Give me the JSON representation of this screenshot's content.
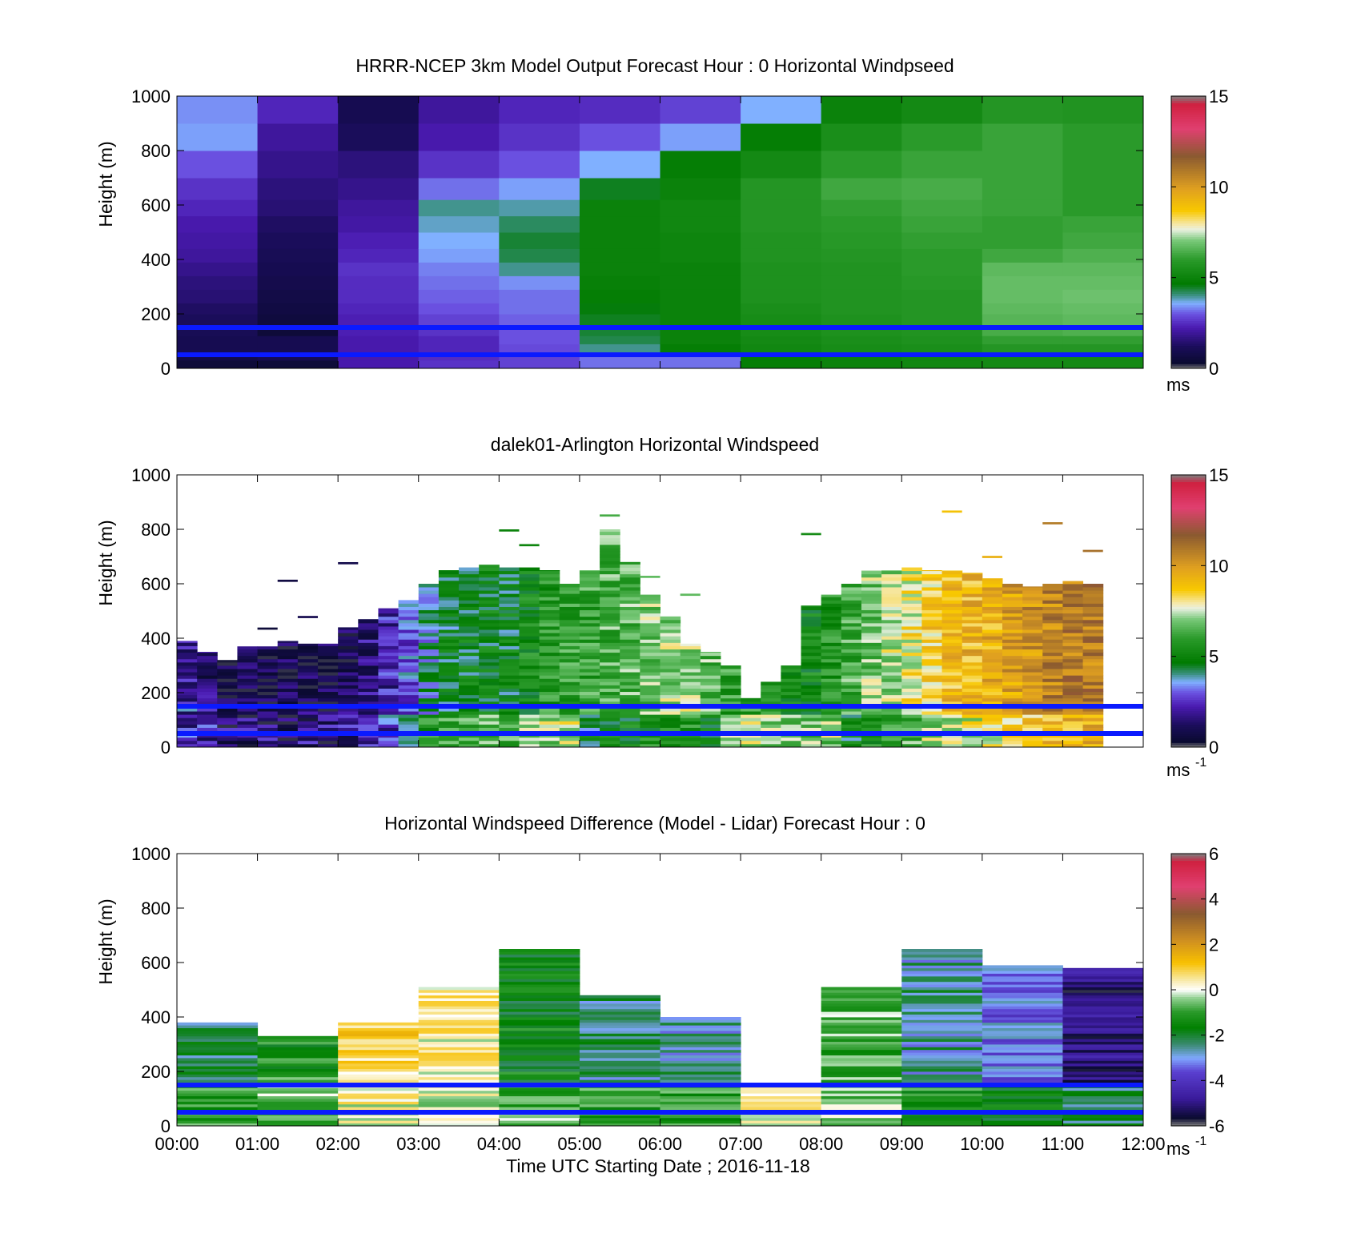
{
  "time_axis": {
    "ticks": [
      "00:00",
      "01:00",
      "02:00",
      "03:00",
      "04:00",
      "05:00",
      "06:00",
      "07:00",
      "08:00",
      "09:00",
      "10:00",
      "11:00",
      "12:00"
    ],
    "label": "Time UTC  Starting Date ; 2016-11-18"
  },
  "chart_data": [
    {
      "type": "heatmap",
      "title": "HRRR-NCEP 3km Model Output   Forecast Hour : 0 Horizontal Windpseed",
      "ylabel": "Height (m)",
      "ylim": [
        0,
        1000
      ],
      "yticks": [
        0,
        200,
        400,
        600,
        800,
        1000
      ],
      "xlim": [
        0,
        12
      ],
      "colorbar": {
        "range": [
          0,
          15
        ],
        "ticks": [
          0,
          5,
          10,
          15
        ],
        "label": "ms",
        "label_sup": ""
      },
      "reference_lines_m": [
        150,
        50
      ],
      "reference_line_color": "#0a1aff",
      "layers_m": [
        0,
        30,
        60,
        90,
        120,
        160,
        200,
        240,
        290,
        340,
        390,
        440,
        500,
        560,
        620,
        700,
        800,
        900,
        1000
      ],
      "columns": [
        {
          "t0": 0,
          "t1": 1,
          "values": [
            0.5,
            0.8,
            1.0,
            1.0,
            1.1,
            1.2,
            1.3,
            1.5,
            1.6,
            1.8,
            2.0,
            2.1,
            2.2,
            2.4,
            2.6,
            3.0,
            3.5,
            3.4,
            3.4
          ]
        },
        {
          "t0": 1,
          "t1": 2,
          "values": [
            0.5,
            1.0,
            1.0,
            1.0,
            0.5,
            0.6,
            0.7,
            0.8,
            0.9,
            1.0,
            1.1,
            1.2,
            1.3,
            1.5,
            1.6,
            1.8,
            2.0,
            2.4,
            2.4
          ]
        },
        {
          "t0": 2,
          "t1": 3,
          "values": [
            2.2,
            2.2,
            2.2,
            2.2,
            2.3,
            2.3,
            2.4,
            2.5,
            2.5,
            2.6,
            2.4,
            2.3,
            2.1,
            2.0,
            1.8,
            1.6,
            1.2,
            1.0,
            1.0
          ]
        },
        {
          "t0": 3,
          "t1": 4,
          "values": [
            2.6,
            2.5,
            2.4,
            2.4,
            2.6,
            2.8,
            3.0,
            3.1,
            3.2,
            3.3,
            3.5,
            3.6,
            3.8,
            4.0,
            3.2,
            2.6,
            2.2,
            2.0,
            2.0
          ]
        },
        {
          "t0": 4,
          "t1": 5,
          "values": [
            2.8,
            2.8,
            2.9,
            3.0,
            3.0,
            3.1,
            3.2,
            3.2,
            3.4,
            4.0,
            4.3,
            4.4,
            4.2,
            3.9,
            3.5,
            3.0,
            2.6,
            2.4,
            2.2
          ]
        },
        {
          "t0": 5,
          "t1": 6,
          "values": [
            3.2,
            3.2,
            4.0,
            4.3,
            4.4,
            4.5,
            4.6,
            4.8,
            4.9,
            5.0,
            5.0,
            5.0,
            5.0,
            5.0,
            4.5,
            3.6,
            3.0,
            2.5,
            2.5
          ]
        },
        {
          "t0": 6,
          "t1": 7,
          "values": [
            3.2,
            3.2,
            4.8,
            5.0,
            5.0,
            5.0,
            5.0,
            5.0,
            5.0,
            5.0,
            5.1,
            5.1,
            5.2,
            5.2,
            5.0,
            4.8,
            3.5,
            2.8,
            2.8
          ]
        },
        {
          "t0": 7,
          "t1": 8,
          "values": [
            4.8,
            4.8,
            5.2,
            5.3,
            5.4,
            5.4,
            5.5,
            5.6,
            5.6,
            5.6,
            5.7,
            5.7,
            5.8,
            5.8,
            5.8,
            5.3,
            4.8,
            3.6,
            3.6
          ]
        },
        {
          "t0": 8,
          "t1": 9,
          "values": [
            5.0,
            5.0,
            5.4,
            5.5,
            5.6,
            5.6,
            5.7,
            5.7,
            5.7,
            5.7,
            5.8,
            5.9,
            6.0,
            6.1,
            6.3,
            6.0,
            5.5,
            5.0,
            5.0
          ]
        },
        {
          "t0": 9,
          "t1": 10,
          "values": [
            5.2,
            5.2,
            5.5,
            5.6,
            5.7,
            5.8,
            5.8,
            5.8,
            5.9,
            6.0,
            6.0,
            6.1,
            6.2,
            6.3,
            6.4,
            6.2,
            6.0,
            5.3,
            5.3
          ]
        },
        {
          "t0": 10,
          "t1": 11,
          "values": [
            5.3,
            5.3,
            5.8,
            6.1,
            6.4,
            6.6,
            6.7,
            6.8,
            6.8,
            6.7,
            6.3,
            6.1,
            6.1,
            6.2,
            6.2,
            6.2,
            6.2,
            5.8,
            5.8
          ]
        },
        {
          "t0": 11,
          "t1": 12,
          "values": [
            5.3,
            5.3,
            5.8,
            6.1,
            6.5,
            6.7,
            6.8,
            6.9,
            6.8,
            6.7,
            6.5,
            6.3,
            6.2,
            6.0,
            6.0,
            6.0,
            6.0,
            5.7,
            5.7
          ]
        }
      ]
    },
    {
      "type": "heatmap",
      "title": "dalek01-Arlington  Horizontal Windspeed",
      "ylabel": "Height (m)",
      "ylim": [
        0,
        1000
      ],
      "yticks": [
        0,
        200,
        400,
        600,
        800,
        1000
      ],
      "xlim": [
        0,
        12
      ],
      "colorbar": {
        "range": [
          0,
          15
        ],
        "ticks": [
          0,
          5,
          10,
          15
        ],
        "label": "ms",
        "label_sup": "-1"
      },
      "reference_lines_m": [
        150,
        50
      ],
      "reference_line_color": "#0a1aff",
      "column_width_h": 0.25,
      "column_tops_m": [
        390,
        350,
        320,
        370,
        370,
        390,
        380,
        380,
        440,
        470,
        510,
        540,
        600,
        650,
        660,
        670,
        660,
        660,
        650,
        600,
        650,
        800,
        680,
        560,
        480,
        380,
        350,
        300,
        180,
        240,
        300,
        520,
        560,
        600,
        650,
        650,
        660,
        650,
        650,
        640,
        620,
        600,
        590,
        600,
        610,
        600
      ],
      "column_mean_speed": [
        1.8,
        1.4,
        1.0,
        0.9,
        0.8,
        0.9,
        0.9,
        0.9,
        1.3,
        1.6,
        2.2,
        3.0,
        4.0,
        4.6,
        4.8,
        4.9,
        4.8,
        5.3,
        5.8,
        6.0,
        6.1,
        6.4,
        6.6,
        6.9,
        7.1,
        7.2,
        6.6,
        6.0,
        5.8,
        5.6,
        5.4,
        5.3,
        5.6,
        6.3,
        7.0,
        7.4,
        8.0,
        8.6,
        9.0,
        9.2,
        9.4,
        9.8,
        10.2,
        10.6,
        10.8,
        10.8
      ]
    },
    {
      "type": "heatmap",
      "title": "Horizontal Windspeed Difference (Model - Lidar) Forecast Hour : 0",
      "ylabel": "Height (m)",
      "ylim": [
        0,
        1000
      ],
      "yticks": [
        0,
        200,
        400,
        600,
        800,
        1000
      ],
      "xlim": [
        0,
        12
      ],
      "colorbar": {
        "range": [
          -6,
          6
        ],
        "ticks": [
          -6,
          -4,
          -2,
          0,
          2,
          4,
          6
        ],
        "label": "ms",
        "label_sup": "-1"
      },
      "reference_lines_m": [
        150,
        50
      ],
      "reference_line_color": "#0a1aff",
      "columns": [
        {
          "t0": 0,
          "t1": 1,
          "top_m": 380,
          "mean_diff": -2.2
        },
        {
          "t0": 1,
          "t1": 2,
          "top_m": 330,
          "mean_diff": -1.2
        },
        {
          "t0": 2,
          "t1": 3,
          "top_m": 380,
          "mean_diff": 0.8
        },
        {
          "t0": 3,
          "t1": 4,
          "top_m": 510,
          "mean_diff": 0.4
        },
        {
          "t0": 4,
          "t1": 5,
          "top_m": 650,
          "mean_diff": -1.6
        },
        {
          "t0": 5,
          "t1": 6,
          "top_m": 480,
          "mean_diff": -2.4
        },
        {
          "t0": 6,
          "t1": 7,
          "top_m": 400,
          "mean_diff": -2.6
        },
        {
          "t0": 7,
          "t1": 8,
          "top_m": 150,
          "mean_diff": 1.2
        },
        {
          "t0": 8,
          "t1": 9,
          "top_m": 510,
          "mean_diff": -0.8
        },
        {
          "t0": 9,
          "t1": 10,
          "top_m": 650,
          "mean_diff": -2.6
        },
        {
          "t0": 10,
          "t1": 11,
          "top_m": 590,
          "mean_diff": -3.4
        },
        {
          "t0": 11,
          "t1": 12,
          "top_m": 580,
          "mean_diff": -5.0
        }
      ]
    }
  ]
}
